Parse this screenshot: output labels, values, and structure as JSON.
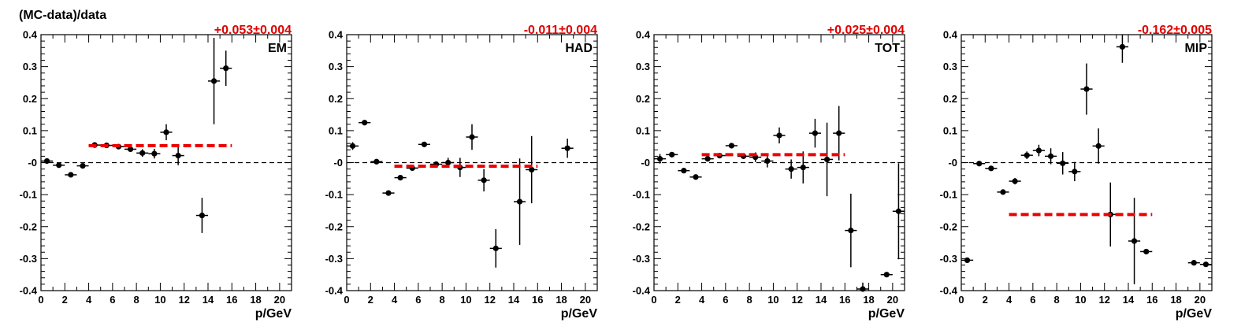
{
  "colors": {
    "points": "#000000",
    "fit": "#ee0000",
    "zero_line": "#000000"
  },
  "chart_data": [
    {
      "type": "scatter",
      "ylabel": "(MC-data)/data",
      "xlabel": "p/GeV",
      "panel_label": "EM",
      "fit_text": "+0.053±0.004",
      "fit_value": 0.053,
      "fit_range": [
        4,
        16
      ],
      "xlim": [
        0,
        21
      ],
      "ylim": [
        -0.4,
        0.4
      ],
      "xticks": [
        "0",
        "2",
        "4",
        "6",
        "8",
        "10",
        "12",
        "14",
        "16",
        "18",
        "20"
      ],
      "yticks": [
        "-0.4",
        "-0.3",
        "-0.2",
        "-0.1",
        "-0",
        "0.1",
        "0.2",
        "0.3",
        "0.4"
      ],
      "reference_line": 0,
      "points": [
        {
          "x": 0.5,
          "y": 0.005,
          "yerr": 0.005
        },
        {
          "x": 1.5,
          "y": -0.008,
          "yerr": 0.005
        },
        {
          "x": 2.5,
          "y": -0.038,
          "yerr": 0.006
        },
        {
          "x": 3.5,
          "y": -0.01,
          "yerr": 0.006
        },
        {
          "x": 4.5,
          "y": 0.055,
          "yerr": 0.005
        },
        {
          "x": 5.5,
          "y": 0.054,
          "yerr": 0.005
        },
        {
          "x": 6.5,
          "y": 0.05,
          "yerr": 0.006
        },
        {
          "x": 7.5,
          "y": 0.042,
          "yerr": 0.008
        },
        {
          "x": 8.5,
          "y": 0.03,
          "yerr": 0.012
        },
        {
          "x": 9.5,
          "y": 0.028,
          "yerr": 0.015
        },
        {
          "x": 10.5,
          "y": 0.095,
          "yerr": 0.025
        },
        {
          "x": 11.5,
          "y": 0.022,
          "yerr": 0.03
        },
        {
          "x": 13.5,
          "y": -0.165,
          "yerr": 0.055
        },
        {
          "x": 14.5,
          "y": 0.255,
          "yerr": 0.135
        },
        {
          "x": 15.5,
          "y": 0.295,
          "yerr": 0.055
        }
      ]
    },
    {
      "type": "scatter",
      "xlabel": "p/GeV",
      "panel_label": "HAD",
      "fit_text": "-0.011±0.004",
      "fit_value": -0.011,
      "fit_range": [
        4,
        16
      ],
      "xlim": [
        0,
        21
      ],
      "ylim": [
        -0.4,
        0.4
      ],
      "xticks": [
        "0",
        "2",
        "4",
        "6",
        "8",
        "10",
        "12",
        "14",
        "16",
        "18",
        "20"
      ],
      "yticks": [
        "-0.4",
        "-0.3",
        "-0.2",
        "-0.1",
        "-0",
        "0.1",
        "0.2",
        "0.3",
        "0.4"
      ],
      "reference_line": 0,
      "points": [
        {
          "x": 0.5,
          "y": 0.052,
          "yerr": 0.012
        },
        {
          "x": 1.5,
          "y": 0.125,
          "yerr": 0.006
        },
        {
          "x": 2.5,
          "y": 0.003,
          "yerr": 0.005
        },
        {
          "x": 3.5,
          "y": -0.095,
          "yerr": 0.006
        },
        {
          "x": 4.5,
          "y": -0.047,
          "yerr": 0.008
        },
        {
          "x": 5.5,
          "y": -0.017,
          "yerr": 0.006
        },
        {
          "x": 6.5,
          "y": 0.057,
          "yerr": 0.006
        },
        {
          "x": 7.5,
          "y": -0.005,
          "yerr": 0.008
        },
        {
          "x": 8.5,
          "y": 0.0,
          "yerr": 0.015
        },
        {
          "x": 9.5,
          "y": -0.015,
          "yerr": 0.03
        },
        {
          "x": 10.5,
          "y": 0.08,
          "yerr": 0.04
        },
        {
          "x": 11.5,
          "y": -0.055,
          "yerr": 0.035
        },
        {
          "x": 12.5,
          "y": -0.268,
          "yerr": 0.06
        },
        {
          "x": 14.5,
          "y": -0.122,
          "yerr": 0.135
        },
        {
          "x": 15.5,
          "y": -0.022,
          "yerr": 0.105
        },
        {
          "x": 18.5,
          "y": 0.045,
          "yerr": 0.03
        }
      ]
    },
    {
      "type": "scatter",
      "xlabel": "p/GeV",
      "panel_label": "TOT",
      "fit_text": "+0.025±0.004",
      "fit_value": 0.025,
      "fit_range": [
        4,
        16
      ],
      "xlim": [
        0,
        21
      ],
      "ylim": [
        -0.4,
        0.4
      ],
      "xticks": [
        "0",
        "2",
        "4",
        "6",
        "8",
        "10",
        "12",
        "14",
        "16",
        "18",
        "20"
      ],
      "yticks": [
        "-0.4",
        "-0.3",
        "-0.2",
        "-0.1",
        "-0",
        "0.1",
        "0.2",
        "0.3",
        "0.4"
      ],
      "reference_line": 0,
      "points": [
        {
          "x": 0.5,
          "y": 0.012,
          "yerr": 0.015
        },
        {
          "x": 1.5,
          "y": 0.025,
          "yerr": 0.008
        },
        {
          "x": 2.5,
          "y": -0.025,
          "yerr": 0.006
        },
        {
          "x": 3.5,
          "y": -0.045,
          "yerr": 0.006
        },
        {
          "x": 4.5,
          "y": 0.012,
          "yerr": 0.008
        },
        {
          "x": 5.5,
          "y": 0.022,
          "yerr": 0.006
        },
        {
          "x": 6.5,
          "y": 0.053,
          "yerr": 0.006
        },
        {
          "x": 7.5,
          "y": 0.02,
          "yerr": 0.008
        },
        {
          "x": 8.5,
          "y": 0.017,
          "yerr": 0.015
        },
        {
          "x": 9.5,
          "y": 0.005,
          "yerr": 0.02
        },
        {
          "x": 10.5,
          "y": 0.085,
          "yerr": 0.025
        },
        {
          "x": 11.5,
          "y": -0.02,
          "yerr": 0.03
        },
        {
          "x": 12.5,
          "y": -0.015,
          "yerr": 0.05
        },
        {
          "x": 13.5,
          "y": 0.092,
          "yerr": 0.045
        },
        {
          "x": 14.5,
          "y": 0.01,
          "yerr": 0.115
        },
        {
          "x": 15.5,
          "y": 0.092,
          "yerr": 0.085
        },
        {
          "x": 16.5,
          "y": -0.212,
          "yerr": 0.115
        },
        {
          "x": 17.5,
          "y": -0.395,
          "yerr": 0.02
        },
        {
          "x": 19.5,
          "y": -0.35,
          "yerr": 0.006
        },
        {
          "x": 20.5,
          "y": -0.152,
          "yerr": 0.15
        }
      ]
    },
    {
      "type": "scatter",
      "xlabel": "p/GeV",
      "panel_label": "MIP",
      "fit_text": "-0.162±0.005",
      "fit_value": -0.162,
      "fit_range": [
        4,
        16
      ],
      "xlim": [
        0,
        21
      ],
      "ylim": [
        -0.4,
        0.4
      ],
      "xticks": [
        "0",
        "2",
        "4",
        "6",
        "8",
        "10",
        "12",
        "14",
        "16",
        "18",
        "20"
      ],
      "yticks": [
        "-0.4",
        "-0.3",
        "-0.2",
        "-0.1",
        "-0",
        "0.1",
        "0.2",
        "0.3",
        "0.4"
      ],
      "reference_line": 0,
      "points": [
        {
          "x": 0.5,
          "y": -0.305,
          "yerr": 0.008
        },
        {
          "x": 1.5,
          "y": -0.003,
          "yerr": 0.005
        },
        {
          "x": 2.5,
          "y": -0.018,
          "yerr": 0.006
        },
        {
          "x": 3.5,
          "y": -0.092,
          "yerr": 0.006
        },
        {
          "x": 4.5,
          "y": -0.058,
          "yerr": 0.01
        },
        {
          "x": 5.5,
          "y": 0.023,
          "yerr": 0.012
        },
        {
          "x": 6.5,
          "y": 0.038,
          "yerr": 0.018
        },
        {
          "x": 7.5,
          "y": 0.02,
          "yerr": 0.025
        },
        {
          "x": 8.5,
          "y": -0.002,
          "yerr": 0.035
        },
        {
          "x": 9.5,
          "y": -0.028,
          "yerr": 0.03
        },
        {
          "x": 10.5,
          "y": 0.23,
          "yerr": 0.08
        },
        {
          "x": 11.5,
          "y": 0.052,
          "yerr": 0.055
        },
        {
          "x": 12.5,
          "y": -0.162,
          "yerr": 0.1
        },
        {
          "x": 13.5,
          "y": 0.362,
          "yerr": 0.05
        },
        {
          "x": 14.5,
          "y": -0.245,
          "yerr": 0.135
        },
        {
          "x": 15.5,
          "y": -0.278,
          "yerr": 0.006
        },
        {
          "x": 19.5,
          "y": -0.313,
          "yerr": 0.005
        },
        {
          "x": 20.5,
          "y": -0.318,
          "yerr": 0.005
        }
      ]
    }
  ]
}
